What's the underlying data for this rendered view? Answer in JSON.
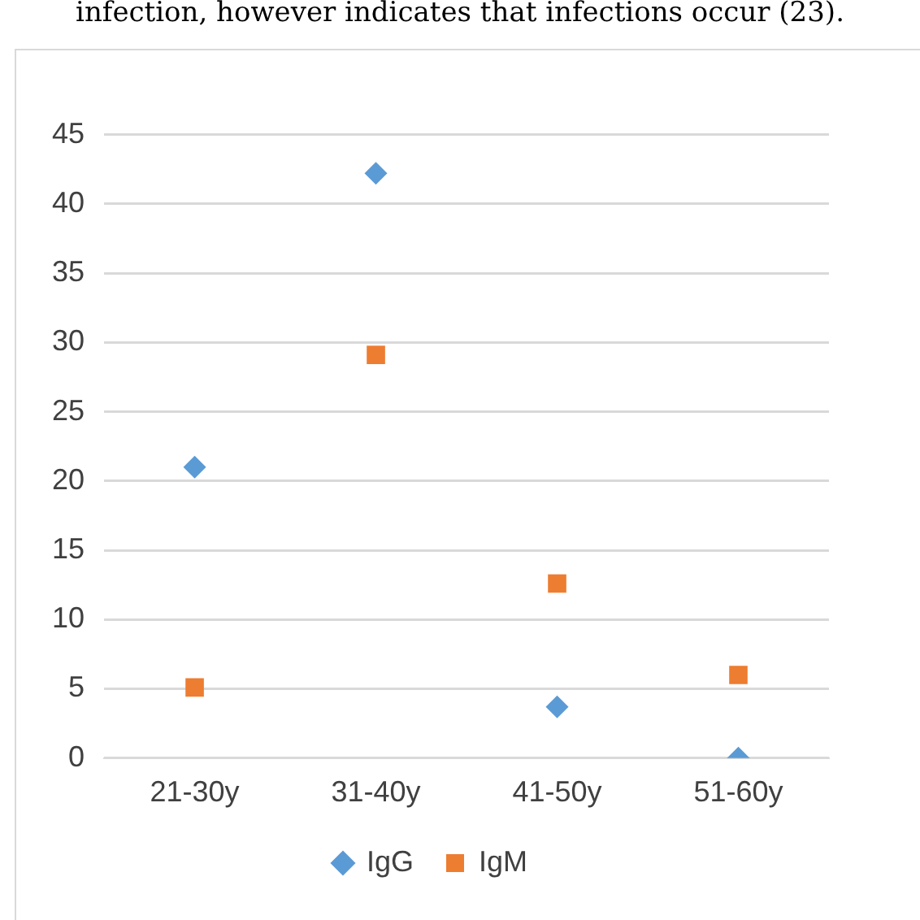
{
  "chart_data": {
    "type": "scatter",
    "annotations": [
      "infection, however indicates that infections occur (23)."
    ],
    "categories": [
      "21-30y",
      "31-40y",
      "41-50y",
      "51-60y"
    ],
    "series": [
      {
        "name": "IgG",
        "color": "#5b9bd5",
        "marker": "diamond",
        "values": [
          21,
          42.2,
          3.7,
          0
        ]
      },
      {
        "name": "IgM",
        "color": "#ed7d31",
        "marker": "square",
        "values": [
          5.1,
          29.1,
          12.6,
          6.0
        ]
      }
    ],
    "ylim": [
      0,
      45
    ],
    "yticks": [
      0,
      5,
      10,
      15,
      20,
      25,
      30,
      35,
      40,
      45
    ],
    "grid": "y",
    "legend": "bottom"
  }
}
